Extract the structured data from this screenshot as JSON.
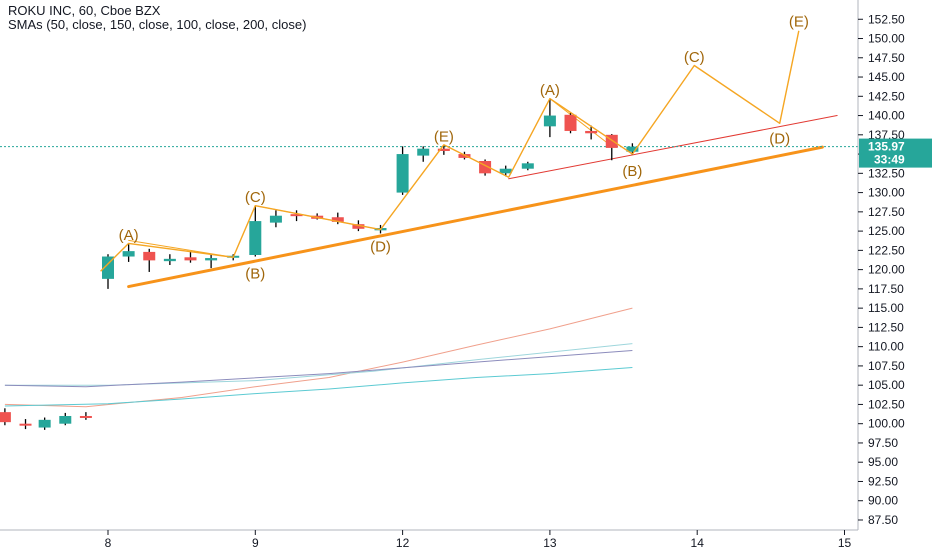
{
  "legend": {
    "title": "ROKU INC, 60, Cboe BZX",
    "smas": "SMAs (50, close, 150, close, 100, close, 200, close)"
  },
  "price_badge": {
    "value": "135.97",
    "countdown": "33:49",
    "color": "#26a69a"
  },
  "chart_data": {
    "type": "candlestick",
    "x_ticks": [
      {
        "label": "8",
        "day": 8
      },
      {
        "label": "9",
        "day": 9
      },
      {
        "label": "12",
        "day": 10
      },
      {
        "label": "13",
        "day": 11
      },
      {
        "label": "14",
        "day": 12
      },
      {
        "label": "15",
        "day": 13
      }
    ],
    "y_ticks": [
      "87.50",
      "90.00",
      "92.50",
      "95.00",
      "97.50",
      "100.00",
      "102.50",
      "105.00",
      "107.50",
      "110.00",
      "112.50",
      "115.00",
      "117.50",
      "120.00",
      "122.50",
      "125.00",
      "127.50",
      "130.00",
      "132.50",
      "135.00",
      "137.50",
      "140.00",
      "142.50",
      "145.00",
      "147.50",
      "150.00",
      "152.50"
    ],
    "ylim": [
      86.2,
      155.0
    ],
    "xlim": [
      7.27,
      13.0
    ],
    "colors": {
      "up": "#26a69a",
      "down": "#ef5350"
    },
    "candles": [
      {
        "t": 7.3,
        "o": 101.5,
        "h": 102.0,
        "l": 99.8,
        "c": 100.2
      },
      {
        "t": 7.44,
        "o": 100.0,
        "h": 100.6,
        "l": 99.3,
        "c": 99.8
      },
      {
        "t": 7.57,
        "o": 99.5,
        "h": 100.8,
        "l": 99.2,
        "c": 100.5
      },
      {
        "t": 7.71,
        "o": 100.0,
        "h": 101.4,
        "l": 99.8,
        "c": 101.0
      },
      {
        "t": 7.85,
        "o": 101.0,
        "h": 101.5,
        "l": 100.5,
        "c": 100.9
      },
      {
        "t": 8.0,
        "o": 118.8,
        "h": 122.0,
        "l": 117.5,
        "c": 121.7
      },
      {
        "t": 8.14,
        "o": 121.7,
        "h": 123.3,
        "l": 121.0,
        "c": 122.4
      },
      {
        "t": 8.28,
        "o": 122.3,
        "h": 122.7,
        "l": 119.7,
        "c": 121.2
      },
      {
        "t": 8.42,
        "o": 121.1,
        "h": 122.0,
        "l": 120.6,
        "c": 121.4
      },
      {
        "t": 8.56,
        "o": 121.6,
        "h": 122.3,
        "l": 120.9,
        "c": 121.2
      },
      {
        "t": 8.7,
        "o": 121.2,
        "h": 121.9,
        "l": 120.2,
        "c": 121.5
      },
      {
        "t": 8.85,
        "o": 121.6,
        "h": 122.0,
        "l": 121.2,
        "c": 121.8
      },
      {
        "t": 9.0,
        "o": 121.9,
        "h": 128.3,
        "l": 121.7,
        "c": 126.3
      },
      {
        "t": 9.14,
        "o": 126.1,
        "h": 127.7,
        "l": 125.5,
        "c": 127.0
      },
      {
        "t": 9.28,
        "o": 127.2,
        "h": 127.7,
        "l": 126.3,
        "c": 127.0
      },
      {
        "t": 9.42,
        "o": 127.0,
        "h": 127.3,
        "l": 126.5,
        "c": 126.6
      },
      {
        "t": 9.56,
        "o": 126.8,
        "h": 127.4,
        "l": 125.9,
        "c": 126.2
      },
      {
        "t": 9.7,
        "o": 125.9,
        "h": 126.4,
        "l": 125.0,
        "c": 125.3
      },
      {
        "t": 9.85,
        "o": 125.1,
        "h": 125.8,
        "l": 124.7,
        "c": 125.4
      },
      {
        "t": 10.0,
        "o": 130.0,
        "h": 136.0,
        "l": 129.7,
        "c": 135.0
      },
      {
        "t": 10.14,
        "o": 134.8,
        "h": 136.0,
        "l": 134.0,
        "c": 135.7
      },
      {
        "t": 10.28,
        "o": 135.7,
        "h": 136.2,
        "l": 134.9,
        "c": 135.4
      },
      {
        "t": 10.42,
        "o": 135.0,
        "h": 135.3,
        "l": 134.3,
        "c": 134.5
      },
      {
        "t": 10.56,
        "o": 134.1,
        "h": 134.3,
        "l": 132.2,
        "c": 132.5
      },
      {
        "t": 10.7,
        "o": 132.5,
        "h": 133.5,
        "l": 132.1,
        "c": 133.1
      },
      {
        "t": 10.85,
        "o": 133.1,
        "h": 134.0,
        "l": 132.9,
        "c": 133.8
      },
      {
        "t": 11.0,
        "o": 138.6,
        "h": 142.2,
        "l": 137.2,
        "c": 140.0
      },
      {
        "t": 11.14,
        "o": 140.1,
        "h": 140.4,
        "l": 137.7,
        "c": 138.0
      },
      {
        "t": 11.28,
        "o": 138.0,
        "h": 138.7,
        "l": 136.9,
        "c": 137.7
      },
      {
        "t": 11.42,
        "o": 137.5,
        "h": 137.6,
        "l": 134.2,
        "c": 135.8
      },
      {
        "t": 11.56,
        "o": 135.3,
        "h": 136.4,
        "l": 134.9,
        "c": 135.97
      }
    ],
    "sma_series": [
      {
        "color": "#f0a08c",
        "points": [
          [
            7.3,
            102.5
          ],
          [
            7.85,
            102.2
          ],
          [
            8.5,
            103.4
          ],
          [
            9.0,
            104.8
          ],
          [
            9.5,
            106.0
          ],
          [
            10.0,
            108.0
          ],
          [
            10.5,
            110.2
          ],
          [
            11.0,
            112.3
          ],
          [
            11.56,
            115.0
          ]
        ]
      },
      {
        "color": "#9ed6dc",
        "points": [
          [
            7.3,
            105.0
          ],
          [
            8.0,
            105.0
          ],
          [
            9.0,
            105.6
          ],
          [
            9.8,
            106.8
          ],
          [
            10.5,
            108.3
          ],
          [
            11.56,
            110.4
          ]
        ]
      },
      {
        "color": "#8c8cbc",
        "points": [
          [
            7.3,
            105.0
          ],
          [
            7.85,
            104.8
          ],
          [
            8.5,
            105.4
          ],
          [
            9.5,
            106.5
          ],
          [
            10.5,
            108.0
          ],
          [
            11.56,
            109.5
          ]
        ]
      },
      {
        "color": "#5ccad2",
        "points": [
          [
            7.3,
            102.3
          ],
          [
            8.0,
            102.6
          ],
          [
            8.5,
            103.2
          ],
          [
            9.0,
            103.9
          ],
          [
            9.5,
            104.5
          ],
          [
            10.0,
            105.3
          ],
          [
            10.5,
            106.0
          ],
          [
            11.0,
            106.5
          ],
          [
            11.56,
            107.3
          ]
        ]
      }
    ],
    "trendlines": [
      {
        "color": "#f7931a",
        "width": 3,
        "points": [
          [
            8.14,
            117.8
          ],
          [
            12.85,
            135.9
          ]
        ]
      },
      {
        "color": "#e23a33",
        "width": 1,
        "points": [
          [
            10.72,
            131.8
          ],
          [
            12.95,
            140.0
          ]
        ]
      },
      {
        "color": "#f5a623",
        "width": 1,
        "points": [
          [
            8.14,
            123.8
          ],
          [
            8.85,
            121.6
          ]
        ]
      },
      {
        "color": "#f5a623",
        "width": 1,
        "points": [
          [
            9.0,
            128.3
          ],
          [
            9.85,
            125.2
          ]
        ]
      },
      {
        "color": "#f5a623",
        "width": 1,
        "points": [
          [
            11.0,
            142.2
          ],
          [
            11.42,
            136.0
          ]
        ]
      }
    ],
    "wave_path": {
      "color": "#f5a623",
      "points": [
        [
          7.95,
          119.8
        ],
        [
          8.14,
          123.4
        ],
        [
          8.85,
          121.6
        ],
        [
          9.0,
          128.3
        ],
        [
          9.85,
          125.2
        ],
        [
          10.28,
          136.2
        ],
        [
          10.72,
          132.0
        ],
        [
          11.0,
          142.2
        ],
        [
          11.56,
          135.0
        ],
        [
          11.98,
          146.5
        ],
        [
          12.56,
          139.0
        ],
        [
          12.69,
          151.0
        ]
      ]
    },
    "wave_labels": [
      {
        "text": "(A)",
        "t": 8.14,
        "y": 124.5
      },
      {
        "text": "(B)",
        "t": 9.0,
        "y": 119.5
      },
      {
        "text": "(C)",
        "t": 9.0,
        "y": 129.4
      },
      {
        "text": "(D)",
        "t": 9.85,
        "y": 123.0
      },
      {
        "text": "(E)",
        "t": 10.28,
        "y": 137.3
      },
      {
        "text": "(A)",
        "t": 11.0,
        "y": 143.3
      },
      {
        "text": "(B)",
        "t": 11.56,
        "y": 132.8
      },
      {
        "text": "(C)",
        "t": 11.98,
        "y": 147.6
      },
      {
        "text": "(D)",
        "t": 12.56,
        "y": 137.0
      },
      {
        "text": "(E)",
        "t": 12.69,
        "y": 152.2
      }
    ],
    "last_price": 135.97
  }
}
